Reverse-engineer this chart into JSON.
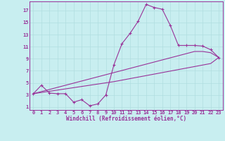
{
  "xlabel": "Windchill (Refroidissement éolien,°C)",
  "x": [
    0,
    1,
    2,
    3,
    4,
    5,
    6,
    7,
    8,
    9,
    10,
    11,
    12,
    13,
    14,
    15,
    16,
    17,
    18,
    19,
    20,
    21,
    22,
    23
  ],
  "line1": [
    3.2,
    4.6,
    3.3,
    3.2,
    3.2,
    1.8,
    2.2,
    1.2,
    1.5,
    3.0,
    8.0,
    11.5,
    13.2,
    15.2,
    18.0,
    17.5,
    17.2,
    14.5,
    11.2,
    11.2,
    11.2,
    11.1,
    10.5,
    9.2
  ],
  "line2": [
    3.2,
    3.55,
    3.9,
    4.25,
    4.6,
    4.95,
    5.3,
    5.65,
    6.0,
    6.35,
    6.7,
    7.05,
    7.4,
    7.75,
    8.1,
    8.45,
    8.8,
    9.15,
    9.5,
    9.85,
    10.2,
    10.2,
    10.0,
    9.2
  ],
  "line3": [
    3.2,
    3.4,
    3.6,
    3.8,
    4.0,
    4.2,
    4.4,
    4.6,
    4.8,
    5.0,
    5.2,
    5.45,
    5.7,
    5.95,
    6.2,
    6.45,
    6.7,
    6.95,
    7.2,
    7.45,
    7.7,
    7.95,
    8.2,
    9.2
  ],
  "line_color": "#993399",
  "bg_color": "#c8eef0",
  "grid_color": "#b0dde0",
  "ylim": [
    0.5,
    18.5
  ],
  "xlim": [
    -0.5,
    23.5
  ],
  "yticks": [
    1,
    3,
    5,
    7,
    9,
    11,
    13,
    15,
    17
  ],
  "xticks": [
    0,
    1,
    2,
    3,
    4,
    5,
    6,
    7,
    8,
    9,
    10,
    11,
    12,
    13,
    14,
    15,
    16,
    17,
    18,
    19,
    20,
    21,
    22,
    23
  ],
  "marker": "+",
  "markersize": 3.5,
  "linewidth": 0.8
}
